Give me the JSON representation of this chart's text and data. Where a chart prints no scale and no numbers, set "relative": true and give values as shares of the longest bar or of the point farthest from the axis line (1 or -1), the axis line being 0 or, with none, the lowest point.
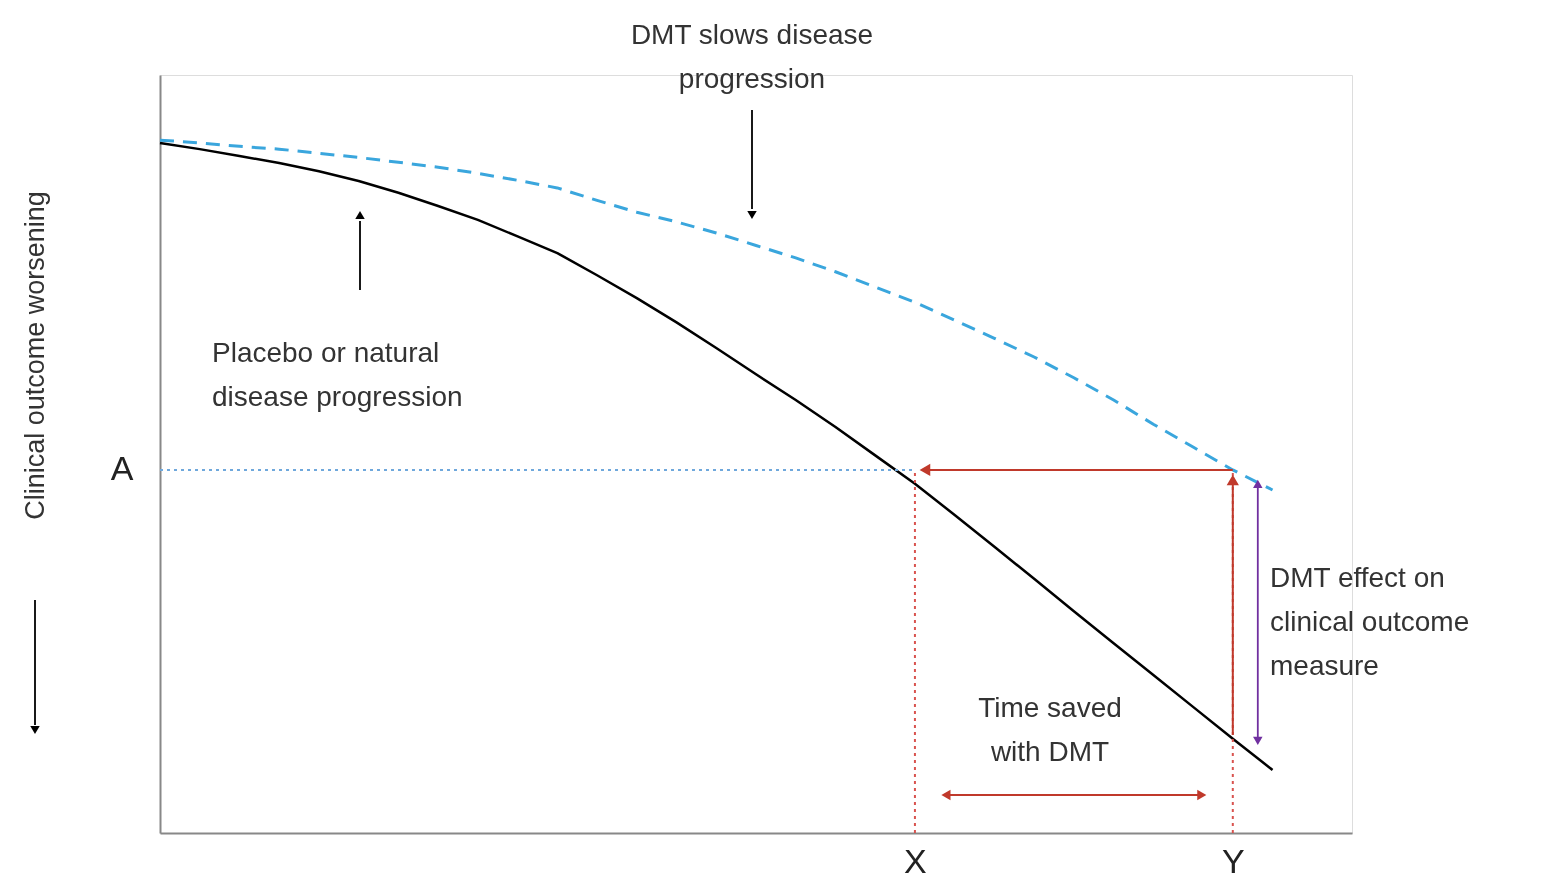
{
  "chart_data": {
    "type": "line",
    "relative": true,
    "ylabel": "Clinical outcome worsening",
    "grid": false,
    "categories": [
      null,
      null,
      null,
      null,
      null,
      null,
      null,
      null,
      null,
      null,
      null,
      null,
      null,
      null,
      null,
      null,
      null,
      null,
      null,
      "X",
      null,
      null,
      null,
      null,
      null,
      null,
      null,
      "Y",
      null,
      null,
      null
    ],
    "series": [
      {
        "color": "#000000",
        "line_style": "solid",
        "values": [
          0.996,
          0.987,
          0.977,
          0.967,
          0.955,
          0.941,
          0.924,
          0.905,
          0.885,
          0.861,
          0.837,
          0.805,
          0.772,
          0.737,
          0.7,
          0.662,
          0.625,
          0.586,
          0.545,
          0.504,
          0.459,
          0.413,
          0.367,
          0.32,
          0.274,
          0.228,
          0.182,
          0.136,
          0.091,
          null,
          null
        ]
      },
      {
        "color": "#3aa6dd",
        "line_style": "dashed",
        "values": [
          1.0,
          0.996,
          0.991,
          0.987,
          0.981,
          0.975,
          0.968,
          0.961,
          0.952,
          0.942,
          0.931,
          0.913,
          0.896,
          0.882,
          0.866,
          0.848,
          0.83,
          0.81,
          0.788,
          0.766,
          0.74,
          0.714,
          0.687,
          0.657,
          0.625,
          0.59,
          0.557,
          0.524,
          0.495,
          null,
          null
        ]
      }
    ],
    "ref_lines": [
      {
        "axis": "y",
        "value": 0.524,
        "label": "A",
        "color": "#6fa8dc",
        "line_style": "dotted"
      },
      {
        "axis": "x",
        "value": "X",
        "color": "#d9534f",
        "line_style": "dotted"
      },
      {
        "axis": "x",
        "value": "Y",
        "color": "#d9534f",
        "line_style": "dotted"
      }
    ],
    "annotations": [
      "DMT slows disease\nprogression",
      "Placebo or natural\ndisease progression",
      "DMT effect on\nclinical outcome\nmeasure",
      "Time saved\nwith DMT"
    ]
  }
}
